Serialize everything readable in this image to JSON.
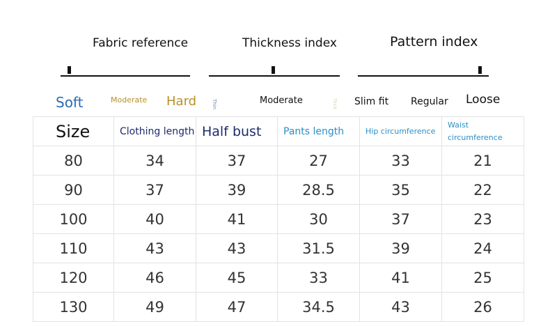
{
  "indices": [
    {
      "title": "Fabric reference",
      "labels": [
        "Soft",
        "Moderate",
        "Hard"
      ]
    },
    {
      "title": "Thickness index",
      "labels": [
        "Thin",
        "Moderate",
        "Thick"
      ]
    },
    {
      "title": "Pattern index",
      "labels": [
        "Slim fit",
        "Regular",
        "Loose"
      ]
    }
  ],
  "table": {
    "header": [
      "Size",
      "Clothing length",
      "Half bust",
      "Pants length",
      "Hip circumference",
      "Waist circumference"
    ],
    "rows": [
      [
        80,
        34,
        37,
        27,
        33,
        21
      ],
      [
        90,
        37,
        39,
        28.5,
        35,
        22
      ],
      [
        100,
        40,
        41,
        30,
        37,
        23
      ],
      [
        110,
        43,
        43,
        31.5,
        39,
        24
      ],
      [
        120,
        46,
        45,
        33,
        41,
        25
      ],
      [
        130,
        49,
        47,
        34.5,
        43,
        26
      ]
    ]
  }
}
